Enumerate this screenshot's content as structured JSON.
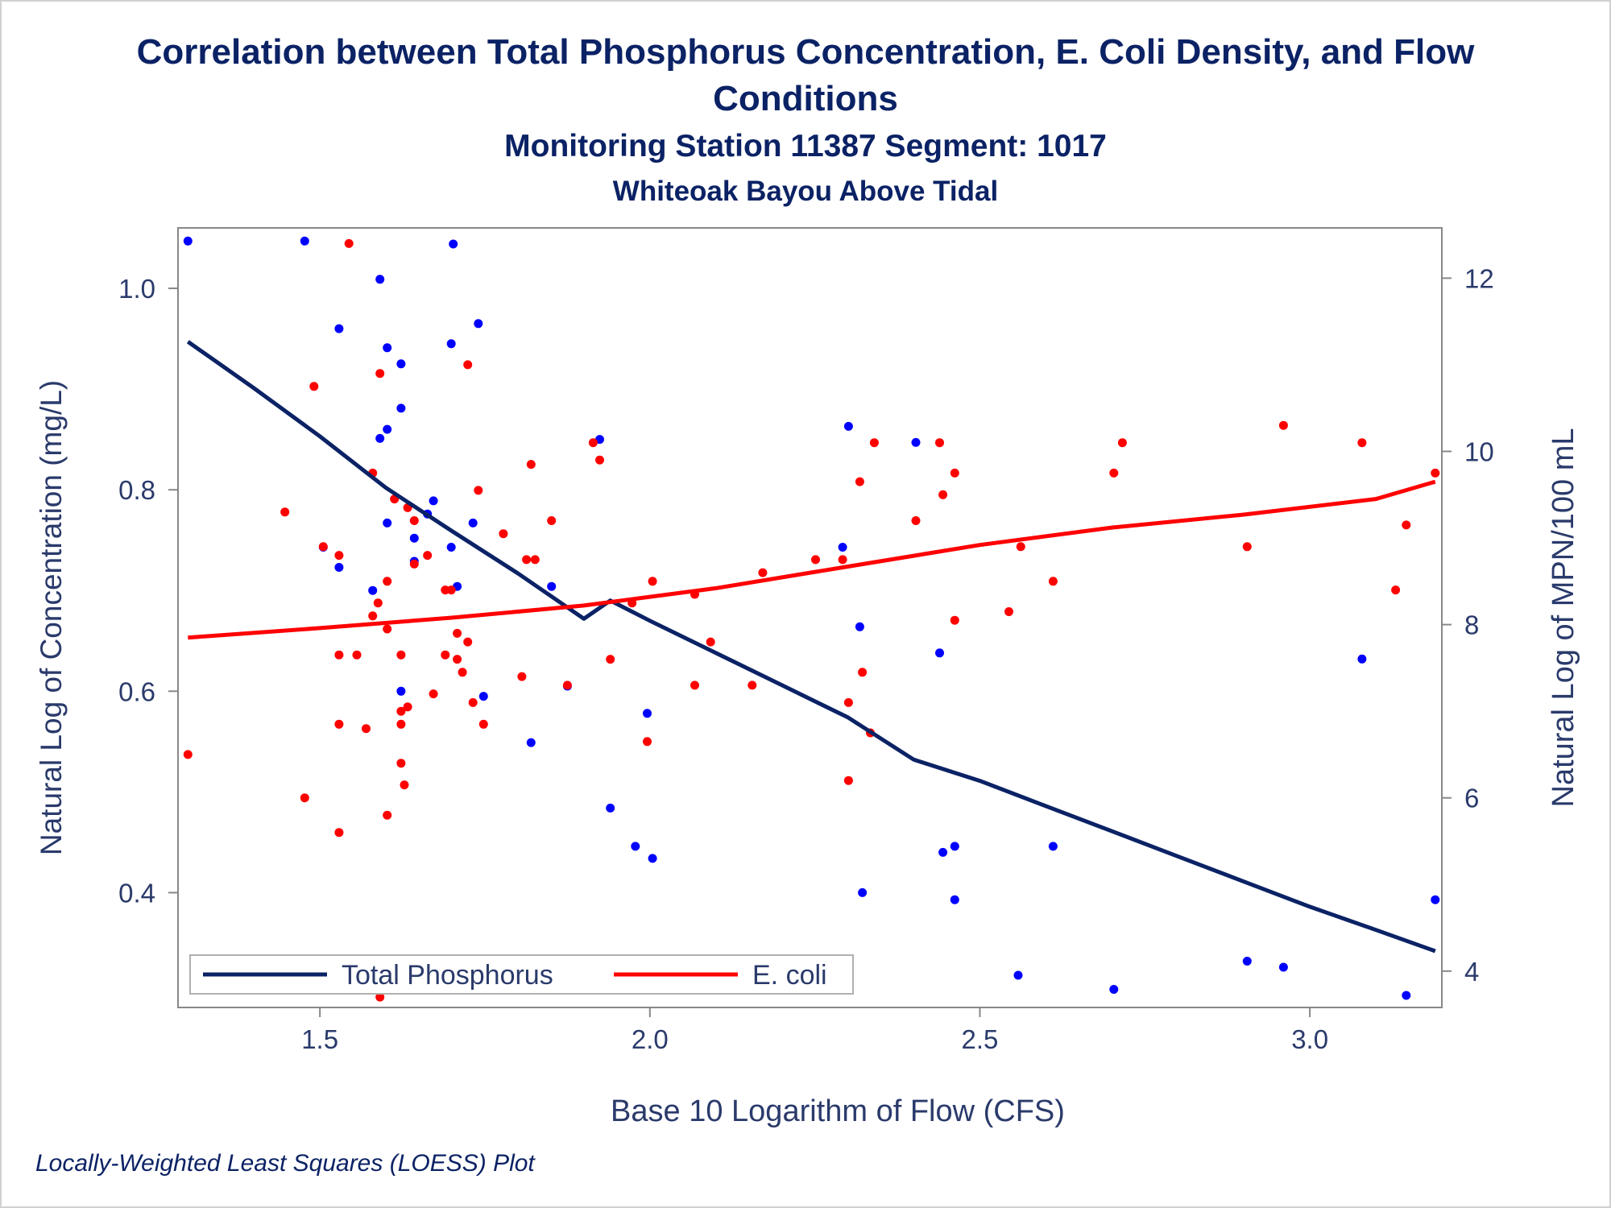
{
  "title": "Correlation between Total Phosphorus Concentration, E. Coli Density, and Flow Conditions",
  "subtitle": "Monitoring Station 11387 Segment: 1017",
  "subtitle2": "Whiteoak Bayou Above Tidal",
  "footnote": "Locally-Weighted Least Squares (LOESS) Plot",
  "colors": {
    "text": "#0b2265",
    "phosphorus": "#0000ff",
    "ecoli": "#ff0000",
    "phosphorus_line": "#0b2265",
    "ecoli_line": "#ff0000",
    "axis": "#888888"
  },
  "chart_data": {
    "type": "scatter",
    "xlabel": "Base 10 Logarithm of Flow (CFS)",
    "ylabel": "Natural Log of Concentration (mg/L)",
    "y2label": "Natural Log of MPN/100 mL",
    "xlim": [
      1.285,
      3.2
    ],
    "ylim": [
      0.286,
      1.06
    ],
    "y2lim": [
      3.58,
      12.58
    ],
    "xticks": [
      "1.5",
      "2.0",
      "2.5",
      "3.0"
    ],
    "yticks": [
      "0.4",
      "0.6",
      "0.8",
      "1.0"
    ],
    "y2ticks": [
      "4",
      "6",
      "8",
      "10",
      "12"
    ],
    "legend_position": "bottom-left",
    "legend": [
      "Total Phosphorus",
      "E. coli"
    ],
    "series": [
      {
        "name": "Total Phosphorus",
        "axis": "left",
        "kind": "scatter",
        "points": [
          [
            1.3,
            1.047
          ],
          [
            1.477,
            1.047
          ],
          [
            1.702,
            1.044
          ],
          [
            1.591,
            1.009
          ],
          [
            1.74,
            0.965
          ],
          [
            1.529,
            0.96
          ],
          [
            1.699,
            0.945
          ],
          [
            1.602,
            0.941
          ],
          [
            1.623,
            0.925
          ],
          [
            1.623,
            0.881
          ],
          [
            1.602,
            0.86
          ],
          [
            1.591,
            0.851
          ],
          [
            2.301,
            0.863
          ],
          [
            2.403,
            0.847
          ],
          [
            1.672,
            0.789
          ],
          [
            1.663,
            0.776
          ],
          [
            1.602,
            0.767
          ],
          [
            1.732,
            0.767
          ],
          [
            1.643,
            0.752
          ],
          [
            1.699,
            0.743
          ],
          [
            1.505,
            0.743
          ],
          [
            2.292,
            0.743
          ],
          [
            1.643,
            0.729
          ],
          [
            1.529,
            0.723
          ],
          [
            1.708,
            0.704
          ],
          [
            1.851,
            0.704
          ],
          [
            1.58,
            0.7
          ],
          [
            2.318,
            0.664
          ],
          [
            2.439,
            0.638
          ],
          [
            3.079,
            0.632
          ],
          [
            1.623,
            0.6
          ],
          [
            1.748,
            0.595
          ],
          [
            1.875,
            0.605
          ],
          [
            1.924,
            0.85
          ],
          [
            1.996,
            0.578
          ],
          [
            1.82,
            0.549
          ],
          [
            1.94,
            0.484
          ],
          [
            1.978,
            0.446
          ],
          [
            2.004,
            0.434
          ],
          [
            2.322,
            0.4
          ],
          [
            2.444,
            0.44
          ],
          [
            2.462,
            0.446
          ],
          [
            2.462,
            0.393
          ],
          [
            2.611,
            0.446
          ],
          [
            2.558,
            0.318
          ],
          [
            2.703,
            0.304
          ],
          [
            2.905,
            0.332
          ],
          [
            2.96,
            0.326
          ],
          [
            3.146,
            0.298
          ],
          [
            3.19,
            0.393
          ]
        ]
      },
      {
        "name": "E. coli",
        "axis": "right",
        "kind": "scatter",
        "points": [
          [
            1.3,
            6.5
          ],
          [
            1.447,
            9.3
          ],
          [
            1.477,
            6.0
          ],
          [
            1.491,
            10.75
          ],
          [
            1.505,
            8.9
          ],
          [
            1.529,
            8.8
          ],
          [
            1.529,
            7.65
          ],
          [
            1.529,
            6.85
          ],
          [
            1.529,
            5.6
          ],
          [
            1.544,
            12.4
          ],
          [
            1.556,
            7.65
          ],
          [
            1.57,
            6.8
          ],
          [
            1.58,
            8.1
          ],
          [
            1.58,
            9.75
          ],
          [
            1.588,
            8.25
          ],
          [
            1.591,
            10.9
          ],
          [
            1.591,
            3.7
          ],
          [
            1.602,
            7.95
          ],
          [
            1.602,
            8.5
          ],
          [
            1.602,
            5.8
          ],
          [
            1.613,
            9.45
          ],
          [
            1.623,
            7.65
          ],
          [
            1.623,
            7.0
          ],
          [
            1.623,
            6.85
          ],
          [
            1.623,
            6.4
          ],
          [
            1.628,
            6.15
          ],
          [
            1.633,
            9.35
          ],
          [
            1.633,
            7.05
          ],
          [
            1.643,
            9.2
          ],
          [
            1.643,
            8.7
          ],
          [
            1.663,
            8.8
          ],
          [
            1.672,
            7.2
          ],
          [
            1.69,
            8.4
          ],
          [
            1.69,
            7.65
          ],
          [
            1.699,
            8.4
          ],
          [
            1.708,
            7.9
          ],
          [
            1.708,
            7.6
          ],
          [
            1.716,
            7.45
          ],
          [
            1.724,
            7.8
          ],
          [
            1.724,
            11.0
          ],
          [
            1.732,
            7.1
          ],
          [
            1.74,
            9.55
          ],
          [
            1.748,
            6.85
          ],
          [
            1.778,
            9.05
          ],
          [
            1.806,
            7.4
          ],
          [
            1.813,
            8.75
          ],
          [
            1.82,
            9.85
          ],
          [
            1.826,
            8.75
          ],
          [
            1.851,
            9.2
          ],
          [
            1.875,
            7.3
          ],
          [
            1.914,
            10.1
          ],
          [
            1.924,
            9.9
          ],
          [
            1.94,
            7.6
          ],
          [
            1.973,
            8.25
          ],
          [
            1.996,
            6.65
          ],
          [
            2.004,
            8.5
          ],
          [
            2.068,
            7.3
          ],
          [
            2.068,
            8.35
          ],
          [
            2.092,
            7.8
          ],
          [
            2.155,
            7.3
          ],
          [
            2.171,
            8.6
          ],
          [
            2.251,
            8.75
          ],
          [
            2.292,
            8.75
          ],
          [
            2.301,
            7.1
          ],
          [
            2.301,
            6.2
          ],
          [
            2.318,
            9.65
          ],
          [
            2.322,
            7.45
          ],
          [
            2.334,
            6.75
          ],
          [
            2.34,
            10.1
          ],
          [
            2.403,
            9.2
          ],
          [
            2.439,
            10.1
          ],
          [
            2.444,
            9.5
          ],
          [
            2.462,
            9.75
          ],
          [
            2.462,
            8.05
          ],
          [
            2.544,
            8.15
          ],
          [
            2.562,
            8.9
          ],
          [
            2.611,
            8.5
          ],
          [
            2.703,
            9.75
          ],
          [
            2.716,
            10.1
          ],
          [
            2.905,
            8.9
          ],
          [
            2.96,
            10.3
          ],
          [
            3.079,
            10.1
          ],
          [
            3.13,
            8.4
          ],
          [
            3.146,
            9.15
          ],
          [
            3.19,
            9.75
          ]
        ]
      },
      {
        "name": "Total Phosphorus",
        "axis": "left",
        "kind": "line",
        "points": [
          [
            1.3,
            0.947
          ],
          [
            1.4,
            0.901
          ],
          [
            1.5,
            0.853
          ],
          [
            1.6,
            0.802
          ],
          [
            1.7,
            0.759
          ],
          [
            1.8,
            0.717
          ],
          [
            1.9,
            0.672
          ],
          [
            1.94,
            0.69
          ],
          [
            2.0,
            0.67
          ],
          [
            2.1,
            0.638
          ],
          [
            2.2,
            0.606
          ],
          [
            2.3,
            0.574
          ],
          [
            2.4,
            0.532
          ],
          [
            2.5,
            0.511
          ],
          [
            2.6,
            0.486
          ],
          [
            2.7,
            0.461
          ],
          [
            2.8,
            0.436
          ],
          [
            2.9,
            0.411
          ],
          [
            3.0,
            0.386
          ],
          [
            3.1,
            0.363
          ],
          [
            3.19,
            0.342
          ]
        ]
      },
      {
        "name": "E. coli",
        "axis": "right",
        "kind": "line",
        "points": [
          [
            1.3,
            7.85
          ],
          [
            1.5,
            7.96
          ],
          [
            1.7,
            8.08
          ],
          [
            1.9,
            8.22
          ],
          [
            2.1,
            8.42
          ],
          [
            2.3,
            8.67
          ],
          [
            2.5,
            8.92
          ],
          [
            2.7,
            9.12
          ],
          [
            2.9,
            9.27
          ],
          [
            3.1,
            9.45
          ],
          [
            3.19,
            9.65
          ]
        ]
      }
    ]
  }
}
